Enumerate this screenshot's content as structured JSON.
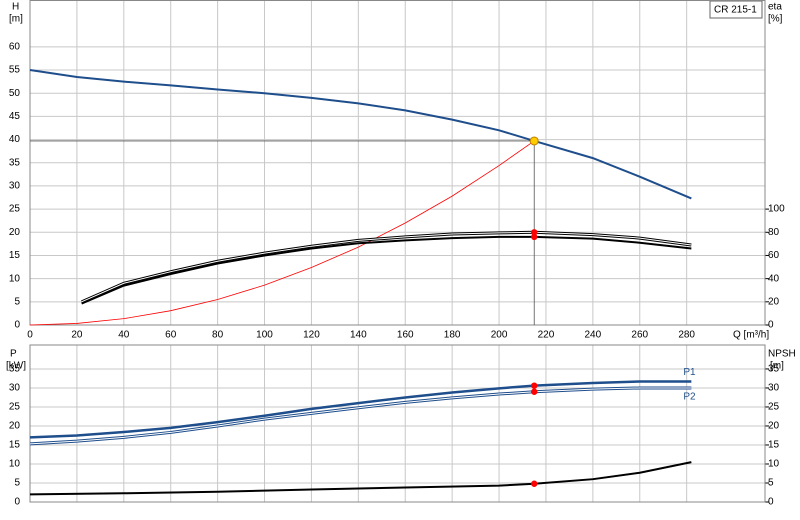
{
  "chart_data": [
    {
      "type": "line",
      "y_label": "H",
      "y_unit": "[m]",
      "y2_label": "eta",
      "y2_unit": "[%]",
      "x_label": "Q [m³/h]",
      "box_label": "CR 215-1",
      "xlim": [
        0,
        313.4
      ],
      "xticks": [
        0,
        20,
        40,
        60,
        80,
        100,
        120,
        140,
        160,
        180,
        200,
        220,
        240,
        260,
        280
      ],
      "ylim": [
        0,
        70
      ],
      "yticks": [
        0,
        5,
        10,
        15,
        20,
        25,
        30,
        35,
        40,
        45,
        50,
        55,
        60
      ],
      "y2lim": [
        0,
        280
      ],
      "y2ticks": [
        0,
        20,
        40,
        60,
        80,
        100
      ],
      "grid": true,
      "operating_point": {
        "x": 215,
        "y": 39.7,
        "color": "#ffcc00"
      },
      "series": [
        {
          "color": "#1f4e8c",
          "width": 2,
          "x": [
            0,
            20,
            40,
            60,
            80,
            100,
            120,
            140,
            160,
            180,
            200,
            215,
            240,
            260,
            282
          ],
          "values": [
            55,
            53.5,
            52.5,
            51.7,
            50.8,
            50,
            49,
            47.8,
            46.3,
            44.3,
            42,
            39.7,
            36,
            32,
            27.3
          ]
        },
        {
          "color": "#ff0000",
          "width": 0.8,
          "x": [
            0,
            20,
            40,
            60,
            80,
            100,
            120,
            140,
            160,
            180,
            200,
            215
          ],
          "values": [
            0,
            0.34,
            1.37,
            3.09,
            5.5,
            8.6,
            12.4,
            16.8,
            22,
            27.8,
            34.4,
            39.7
          ]
        },
        {
          "color": "#000000",
          "width": 3,
          "double": true,
          "axis": "y2",
          "dot": "#ff0000",
          "x": [
            22,
            40,
            60,
            80,
            100,
            120,
            140,
            160,
            180,
            200,
            215,
            240,
            260,
            282
          ],
          "values": [
            20,
            36,
            46,
            55,
            62,
            68,
            73,
            76,
            78.5,
            79.5,
            80,
            78,
            75,
            69
          ]
        },
        {
          "color": "#000000",
          "width": 2,
          "axis": "y2",
          "dot": "#ff0000",
          "x": [
            22,
            40,
            60,
            80,
            100,
            120,
            140,
            160,
            180,
            200,
            215,
            240,
            260,
            282
          ],
          "values": [
            18.5,
            34,
            44,
            53,
            60,
            66,
            70.5,
            73,
            75,
            76,
            76,
            74.5,
            71,
            66
          ]
        }
      ]
    },
    {
      "type": "line",
      "y_label": "P",
      "y_unit": "[kW]",
      "y2_label": "NPSH",
      "y2_unit": "[m]",
      "xlim": [
        0,
        313.4
      ],
      "xticks": [
        0,
        20,
        40,
        60,
        80,
        100,
        120,
        140,
        160,
        180,
        200,
        220,
        240,
        260,
        280
      ],
      "ylim": [
        0,
        41.3
      ],
      "yticks": [
        0,
        5,
        10,
        15,
        20,
        25,
        30,
        35
      ],
      "y2lim": [
        0,
        41.3
      ],
      "y2ticks": [
        0,
        5,
        10,
        15,
        20,
        25,
        30,
        35
      ],
      "grid": true,
      "marker_x": 215,
      "series": [
        {
          "name": "P1",
          "color": "#1f4e8c",
          "width": 2.5,
          "dot": "#ff0000",
          "x": [
            0,
            20,
            40,
            60,
            80,
            100,
            120,
            140,
            160,
            180,
            200,
            215,
            240,
            260,
            282
          ],
          "values": [
            17,
            17.5,
            18.4,
            19.5,
            21,
            22.7,
            24.5,
            26,
            27.5,
            28.8,
            29.9,
            30.6,
            31.3,
            31.7,
            31.7
          ]
        },
        {
          "name": "P2",
          "color": "#1f4e8c",
          "width": 3,
          "double": true,
          "dot": "#ff0000",
          "x": [
            0,
            20,
            40,
            60,
            80,
            100,
            120,
            140,
            160,
            180,
            200,
            215,
            240,
            260,
            282
          ],
          "values": [
            15.3,
            16,
            17,
            18.3,
            20,
            21.8,
            23.3,
            24.8,
            26.2,
            27.4,
            28.4,
            29,
            29.7,
            30,
            30
          ]
        },
        {
          "color": "#000000",
          "width": 2,
          "axis": "y2",
          "dot": "#ff0000",
          "x": [
            0,
            40,
            80,
            120,
            160,
            200,
            215,
            240,
            260,
            282
          ],
          "values": [
            2,
            2.3,
            2.7,
            3.3,
            3.8,
            4.3,
            4.8,
            6,
            7.7,
            10.5
          ]
        }
      ]
    }
  ]
}
